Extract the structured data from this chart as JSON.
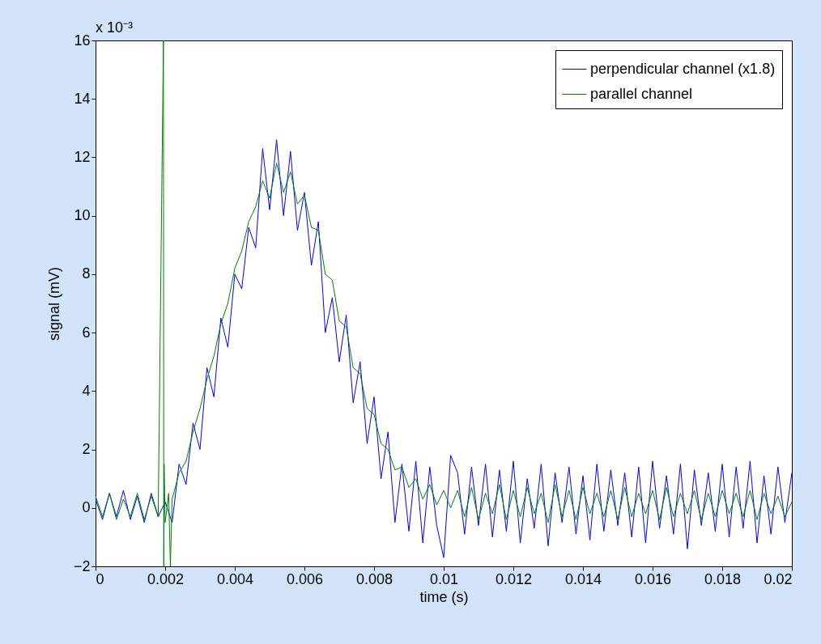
{
  "chart_data": {
    "type": "line",
    "xlabel": "time (s)",
    "ylabel": "signal (mV)",
    "annotations": [
      "x 10⁻³"
    ],
    "xlim": [
      0,
      0.02
    ],
    "xticks": [
      0,
      0.002,
      0.004,
      0.006,
      0.008,
      0.01,
      0.012,
      0.014,
      0.016,
      0.018,
      0.02
    ],
    "ylim": [
      -2,
      16
    ],
    "yticks": [
      -2,
      0,
      2,
      4,
      6,
      8,
      10,
      12,
      14,
      16
    ],
    "grid": false,
    "legend": "top right",
    "series": [
      {
        "name": "perpendicular channel (x1.8)",
        "color": "#0000ff",
        "x": [
          0,
          0.0002,
          0.0004,
          0.0006,
          0.0008,
          0.001,
          0.0012,
          0.0014,
          0.0016,
          0.0018,
          0.002,
          0.0022,
          0.0024,
          0.0026,
          0.0028,
          0.003,
          0.0032,
          0.0034,
          0.0036,
          0.0038,
          0.004,
          0.0042,
          0.0044,
          0.0046,
          0.0048,
          0.005,
          0.0052,
          0.0054,
          0.0056,
          0.0058,
          0.006,
          0.0062,
          0.0064,
          0.0066,
          0.0068,
          0.007,
          0.0072,
          0.0074,
          0.0076,
          0.0078,
          0.008,
          0.0082,
          0.0084,
          0.0086,
          0.0088,
          0.009,
          0.0092,
          0.0094,
          0.0096,
          0.0098,
          0.01,
          0.0102,
          0.0104,
          0.0106,
          0.0108,
          0.011,
          0.0112,
          0.0114,
          0.0116,
          0.0118,
          0.012,
          0.0122,
          0.0124,
          0.0126,
          0.0128,
          0.013,
          0.0132,
          0.0134,
          0.0136,
          0.0138,
          0.014,
          0.0142,
          0.0144,
          0.0146,
          0.0148,
          0.015,
          0.0152,
          0.0154,
          0.0156,
          0.0158,
          0.016,
          0.0162,
          0.0164,
          0.0166,
          0.0168,
          0.017,
          0.0172,
          0.0174,
          0.0176,
          0.0178,
          0.018,
          0.0182,
          0.0184,
          0.0186,
          0.0188,
          0.019,
          0.0192,
          0.0194,
          0.0196,
          0.0198,
          0.02
        ],
        "values": [
          0.3,
          -0.4,
          0.5,
          -0.3,
          0.6,
          -0.4,
          0.4,
          -0.5,
          0.5,
          -0.3,
          0.2,
          -0.5,
          1.5,
          0.8,
          2.9,
          2.0,
          4.8,
          3.8,
          6.5,
          5.5,
          8.0,
          7.5,
          9.6,
          8.9,
          12.3,
          10.2,
          12.6,
          10.0,
          12.2,
          9.5,
          10.8,
          8.3,
          9.8,
          6.0,
          7.2,
          5.0,
          6.6,
          3.6,
          5.0,
          2.2,
          3.8,
          1.0,
          2.6,
          -0.5,
          1.5,
          -0.8,
          1.6,
          -1.2,
          1.4,
          -0.6,
          -1.7,
          1.8,
          1.2,
          -0.9,
          1.4,
          -0.6,
          1.5,
          -1.0,
          1.3,
          -0.8,
          1.6,
          -1.2,
          1.0,
          -0.7,
          1.5,
          -1.3,
          1.2,
          -0.5,
          1.4,
          -0.9,
          1.1,
          -1.1,
          1.5,
          -0.8,
          1.3,
          -0.6,
          1.2,
          -1.0,
          1.4,
          -1.2,
          1.6,
          -0.7,
          1.1,
          -0.9,
          1.5,
          -1.4,
          1.3,
          -0.6,
          1.2,
          -0.8,
          1.5,
          -1.0,
          1.4,
          -0.7,
          1.6,
          -1.2,
          1.1,
          -0.9,
          1.4,
          -0.5,
          1.2
        ]
      },
      {
        "name": "parallel channel",
        "color": "#008000",
        "x": [
          0,
          0.0002,
          0.0004,
          0.0006,
          0.0008,
          0.001,
          0.0012,
          0.0014,
          0.0016,
          0.0018,
          0.00195,
          0.00196,
          0.00197,
          0.002,
          0.0021,
          0.00215,
          0.0022,
          0.0024,
          0.0026,
          0.0028,
          0.003,
          0.0032,
          0.0034,
          0.0036,
          0.0038,
          0.004,
          0.0042,
          0.0044,
          0.0046,
          0.0048,
          0.005,
          0.0052,
          0.0054,
          0.0056,
          0.0058,
          0.006,
          0.0062,
          0.0064,
          0.0066,
          0.0068,
          0.007,
          0.0072,
          0.0074,
          0.0076,
          0.0078,
          0.008,
          0.0082,
          0.0084,
          0.0086,
          0.0088,
          0.009,
          0.0092,
          0.0094,
          0.0096,
          0.0098,
          0.01,
          0.0102,
          0.0104,
          0.0106,
          0.0108,
          0.011,
          0.0112,
          0.0114,
          0.0116,
          0.0118,
          0.012,
          0.0122,
          0.0124,
          0.0126,
          0.0128,
          0.013,
          0.0132,
          0.0134,
          0.0136,
          0.0138,
          0.014,
          0.0142,
          0.0144,
          0.0146,
          0.0148,
          0.015,
          0.0152,
          0.0154,
          0.0156,
          0.0158,
          0.016,
          0.0162,
          0.0164,
          0.0166,
          0.0168,
          0.017,
          0.0172,
          0.0174,
          0.0176,
          0.0178,
          0.018,
          0.0182,
          0.0184,
          0.0186,
          0.0188,
          0.019,
          0.0192,
          0.0194,
          0.0196,
          0.0198,
          0.02
        ],
        "values": [
          0.4,
          -0.3,
          0.5,
          -0.4,
          0.3,
          -0.3,
          0.5,
          -0.4,
          0.4,
          -0.3,
          16,
          -2,
          1.5,
          -0.5,
          0.5,
          -2,
          0.3,
          1.2,
          1.6,
          2.6,
          3.4,
          4.4,
          5.2,
          6.3,
          7.0,
          8.2,
          8.8,
          9.8,
          10.3,
          11.2,
          10.6,
          11.8,
          10.8,
          11.5,
          10.4,
          10.7,
          9.6,
          9.5,
          8.0,
          7.8,
          6.4,
          6.2,
          4.8,
          4.6,
          3.4,
          3.2,
          2.2,
          2.0,
          1.3,
          1.4,
          0.7,
          1.0,
          0.3,
          0.8,
          0.1,
          0.6,
          0.0,
          0.6,
          -0.3,
          0.7,
          -0.4,
          0.5,
          -0.2,
          0.8,
          -0.4,
          0.6,
          -0.3,
          0.7,
          -0.2,
          0.5,
          -0.5,
          0.8,
          -0.3,
          0.6,
          -0.4,
          0.7,
          -0.2,
          0.5,
          -0.3,
          0.6,
          -0.4,
          0.7,
          -0.3,
          0.5,
          -0.2,
          0.6,
          -0.4,
          0.7,
          -0.3,
          0.5,
          -0.2,
          0.6,
          -0.4,
          0.5,
          -0.3,
          0.6,
          -0.2,
          0.5,
          -0.3,
          0.6,
          -0.4,
          0.5,
          -0.2,
          0.4,
          -0.3,
          0.2
        ]
      }
    ]
  }
}
